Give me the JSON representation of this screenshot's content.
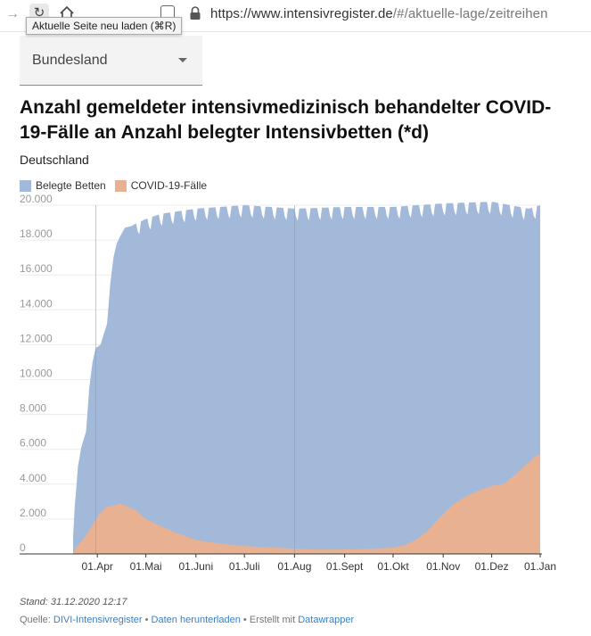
{
  "browser": {
    "forward_icon": "arrow-right-icon",
    "reload_icon": "reload-icon",
    "home_icon": "home-icon",
    "url_main": "https://www.intensivregister.de",
    "url_rest": "/#/aktuelle-lage/zeitreihen",
    "tooltip": "Aktuelle Seite neu laden (⌘R)"
  },
  "dropdown": {
    "label": "Bundesland"
  },
  "chart_header": {
    "title": "Anzahl gemeldeter intensivmedizinisch behandelter COVID-19-Fälle an Anzahl belegter Intensivbetten (*d)",
    "subtitle": "Deutschland"
  },
  "legend": [
    {
      "label": "Belegte Betten",
      "color": "#a3b9d9"
    },
    {
      "label": "COVID-19-Fälle",
      "color": "#e8b191"
    }
  ],
  "chart_data": {
    "type": "area",
    "y_ticks": [
      "20.000",
      "18.000",
      "16.000",
      "14.000",
      "12.000",
      "10.000",
      "8.000",
      "6.000",
      "4.000",
      "2.000",
      "0"
    ],
    "ylim": [
      0,
      20000
    ],
    "x_ticks": [
      "01.Apr",
      "01.Mai",
      "01.Juni",
      "01.Juli",
      "01.Aug",
      "01.Sept",
      "01.Okt",
      "01.Nov",
      "01.Dez",
      "01.Jan"
    ],
    "xlim": [
      "2020-03-17",
      "2020-12-31"
    ],
    "series": [
      {
        "name": "Belegte Betten",
        "color": "#a3b9d9",
        "points": [
          [
            "2020-03-17",
            1000
          ],
          [
            "2020-03-18",
            2700
          ],
          [
            "2020-03-19",
            3800
          ],
          [
            "2020-03-20",
            5000
          ],
          [
            "2020-03-22",
            6100
          ],
          [
            "2020-03-24",
            6700
          ],
          [
            "2020-03-25",
            7000
          ],
          [
            "2020-03-27",
            9500
          ],
          [
            "2020-03-29",
            11000
          ],
          [
            "2020-03-31",
            11800
          ],
          [
            "2020-04-03",
            12000
          ],
          [
            "2020-04-05",
            12600
          ],
          [
            "2020-04-07",
            13200
          ],
          [
            "2020-04-09",
            15500
          ],
          [
            "2020-04-11",
            17000
          ],
          [
            "2020-04-13",
            17800
          ],
          [
            "2020-04-15",
            18200
          ],
          [
            "2020-04-18",
            18700
          ],
          [
            "2020-04-22",
            18800
          ],
          [
            "2020-04-26",
            19000
          ],
          [
            "2020-05-01",
            19200
          ],
          [
            "2020-05-10",
            19500
          ],
          [
            "2020-06-01",
            19800
          ],
          [
            "2020-07-01",
            20000
          ],
          [
            "2020-08-01",
            19800
          ],
          [
            "2020-09-01",
            19900
          ],
          [
            "2020-10-01",
            19900
          ],
          [
            "2020-11-01",
            20100
          ],
          [
            "2020-12-01",
            20200
          ],
          [
            "2020-12-24",
            19800
          ],
          [
            "2020-12-31",
            20000
          ]
        ]
      },
      {
        "name": "COVID-19-Fälle",
        "color": "#e8b191",
        "points": [
          [
            "2020-03-17",
            100
          ],
          [
            "2020-03-19",
            400
          ],
          [
            "2020-03-22",
            700
          ],
          [
            "2020-03-26",
            1200
          ],
          [
            "2020-03-30",
            1800
          ],
          [
            "2020-04-03",
            2400
          ],
          [
            "2020-04-07",
            2700
          ],
          [
            "2020-04-12",
            2800
          ],
          [
            "2020-04-15",
            2900
          ],
          [
            "2020-04-20",
            2700
          ],
          [
            "2020-04-25",
            2500
          ],
          [
            "2020-05-01",
            2000
          ],
          [
            "2020-05-10",
            1600
          ],
          [
            "2020-05-20",
            1200
          ],
          [
            "2020-06-01",
            800
          ],
          [
            "2020-06-15",
            600
          ],
          [
            "2020-07-01",
            450
          ],
          [
            "2020-07-15",
            380
          ],
          [
            "2020-08-01",
            300
          ],
          [
            "2020-08-15",
            250
          ],
          [
            "2020-09-01",
            250
          ],
          [
            "2020-09-15",
            290
          ],
          [
            "2020-10-01",
            360
          ],
          [
            "2020-10-08",
            500
          ],
          [
            "2020-10-15",
            800
          ],
          [
            "2020-10-22",
            1300
          ],
          [
            "2020-11-01",
            2300
          ],
          [
            "2020-11-08",
            2900
          ],
          [
            "2020-11-15",
            3300
          ],
          [
            "2020-11-22",
            3600
          ],
          [
            "2020-12-01",
            3900
          ],
          [
            "2020-12-08",
            4000
          ],
          [
            "2020-12-15",
            4500
          ],
          [
            "2020-12-22",
            5100
          ],
          [
            "2020-12-28",
            5600
          ],
          [
            "2020-12-31",
            5700
          ]
        ]
      }
    ],
    "grid": true
  },
  "footer": {
    "stand": "Stand: 31.12.2020 12:17",
    "quelle_prefix": "Quelle: ",
    "quelle_link": "DIVI-Intensivregister",
    "separator1": " • ",
    "download_link": "Daten herunterladen",
    "separator2": " • ",
    "created_text": "Erstellt mit ",
    "datawrapper_link": "Datawrapper"
  }
}
